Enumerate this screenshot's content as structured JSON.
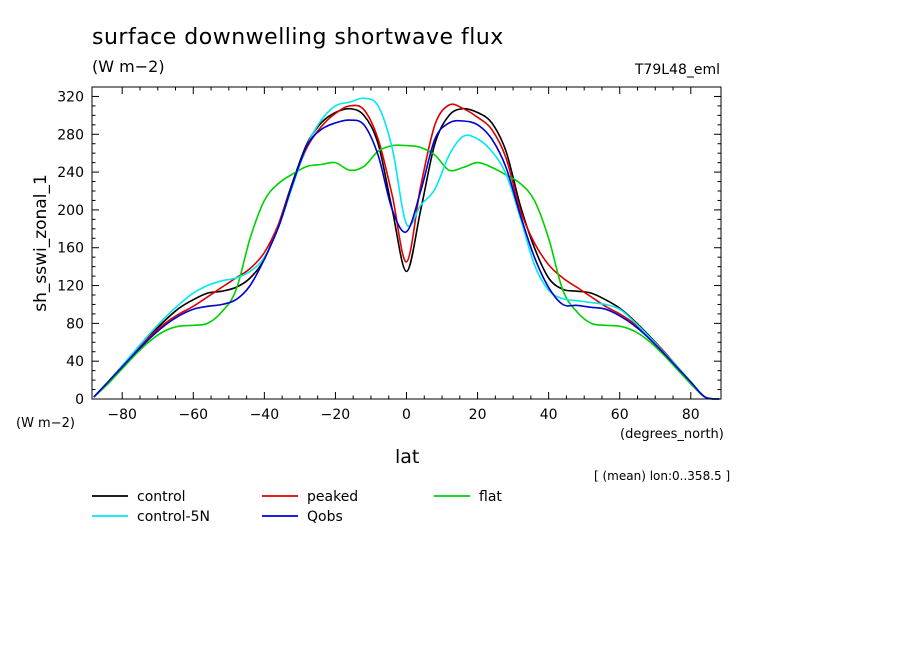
{
  "chart_data": {
    "type": "line",
    "title": "surface downwelling shortwave flux",
    "units": "(W m−2)",
    "run_id": "T79L48_eml",
    "ylabel": "sh_sswi_zonal_1",
    "y_units": "(W m−2)",
    "xlabel": "lat",
    "x_units": "(degrees_north)",
    "note": "[ (mean) lon:0..358.5 ]",
    "xlim": [
      -88.5,
      88.5
    ],
    "ylim": [
      0,
      330
    ],
    "xticks": [
      -80,
      -60,
      -40,
      -20,
      0,
      20,
      40,
      60,
      80
    ],
    "xtick_labels": [
      "−80",
      "−60",
      "−40",
      "−20",
      "0",
      "20",
      "40",
      "60",
      "80"
    ],
    "yticks": [
      0,
      40,
      80,
      120,
      160,
      200,
      240,
      280,
      320
    ],
    "ytick_labels": [
      "0",
      "40",
      "80",
      "120",
      "160",
      "200",
      "240",
      "280",
      "320"
    ],
    "legend_position": "bottom",
    "x": [
      -88,
      -84,
      -80,
      -76,
      -72,
      -68,
      -64,
      -60,
      -56,
      -52,
      -48,
      -44,
      -40,
      -36,
      -32,
      -28,
      -24,
      -20,
      -16,
      -12,
      -8,
      -4,
      0,
      4,
      8,
      12,
      16,
      20,
      24,
      28,
      32,
      36,
      40,
      44,
      48,
      52,
      56,
      60,
      64,
      68,
      72,
      76,
      80,
      84,
      88
    ],
    "series": [
      {
        "name": "control",
        "color": "#000000",
        "values": [
          2,
          18,
          35,
          52,
          68,
          83,
          96,
          105,
          112,
          114,
          118,
          128,
          148,
          185,
          230,
          270,
          292,
          303,
          307,
          300,
          270,
          200,
          135,
          200,
          270,
          300,
          307,
          303,
          292,
          262,
          205,
          160,
          128,
          116,
          114,
          112,
          105,
          96,
          83,
          68,
          52,
          35,
          18,
          2,
          0
        ]
      },
      {
        "name": "peaked",
        "color": "#e00000",
        "values": [
          2,
          18,
          35,
          52,
          67,
          80,
          90,
          98,
          108,
          118,
          128,
          138,
          155,
          185,
          228,
          266,
          288,
          302,
          310,
          306,
          275,
          215,
          145,
          225,
          290,
          311,
          307,
          298,
          285,
          255,
          200,
          165,
          142,
          128,
          118,
          108,
          98,
          90,
          80,
          67,
          52,
          35,
          18,
          2,
          0
        ]
      },
      {
        "name": "flat",
        "color": "#00d000",
        "values": [
          2,
          16,
          32,
          48,
          62,
          72,
          77,
          78,
          80,
          92,
          115,
          170,
          210,
          228,
          238,
          246,
          248,
          250,
          242,
          246,
          262,
          268,
          268,
          266,
          258,
          242,
          245,
          250,
          245,
          237,
          228,
          210,
          170,
          115,
          92,
          80,
          78,
          77,
          72,
          62,
          48,
          32,
          16,
          2,
          0
        ]
      },
      {
        "name": "control-5N",
        "color": "#00e8f0",
        "values": [
          2,
          18,
          35,
          53,
          70,
          86,
          100,
          112,
          120,
          125,
          128,
          135,
          150,
          182,
          226,
          268,
          295,
          310,
          314,
          318,
          310,
          265,
          185,
          205,
          222,
          258,
          278,
          275,
          262,
          238,
          192,
          142,
          115,
          106,
          104,
          102,
          100,
          95,
          82,
          67,
          51,
          35,
          18,
          2,
          0
        ]
      },
      {
        "name": "Qobs",
        "color": "#0000d0",
        "values": [
          2,
          18,
          34,
          50,
          65,
          78,
          88,
          95,
          98,
          100,
          105,
          120,
          148,
          182,
          228,
          268,
          285,
          292,
          295,
          290,
          258,
          200,
          177,
          220,
          275,
          292,
          294,
          290,
          275,
          245,
          195,
          150,
          118,
          100,
          99,
          97,
          95,
          88,
          78,
          65,
          50,
          34,
          18,
          2,
          0
        ]
      }
    ]
  }
}
